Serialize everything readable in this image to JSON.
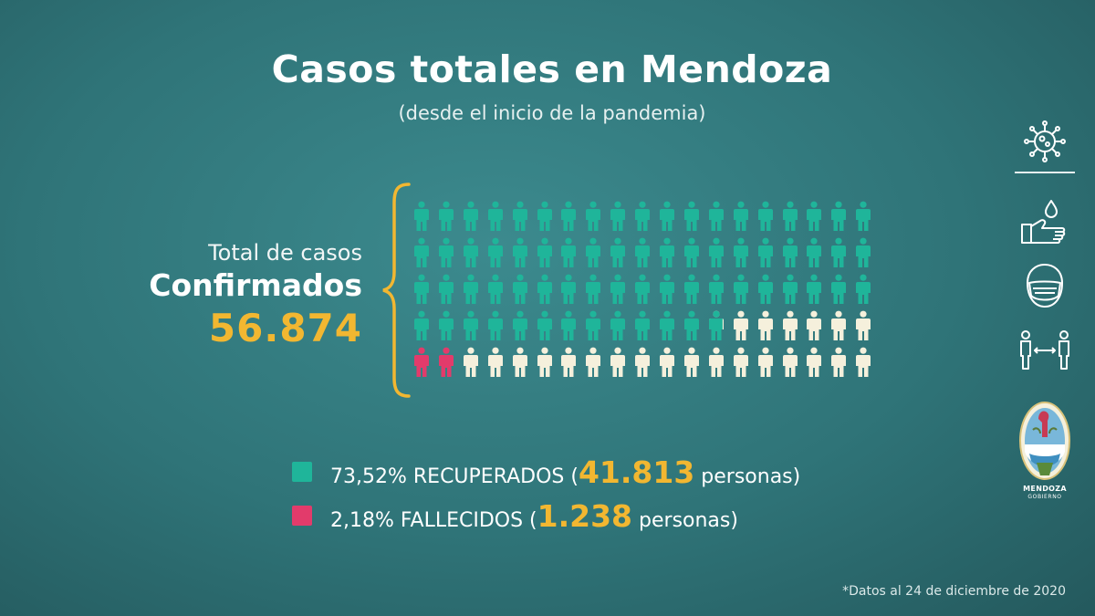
{
  "title": "Casos totales en Mendoza",
  "subtitle": "(desde el inicio de la pandemia)",
  "summary": {
    "label": "Total de casos",
    "strong": "Confirmados",
    "total": "56.874"
  },
  "colors": {
    "recovered": "#1fb59a",
    "deceased": "#e23b6b",
    "other": "#f5f0dc",
    "accent": "#f2b731"
  },
  "chart_data": {
    "type": "pictogram",
    "rows": 5,
    "cols": 19,
    "categories": [
      "RECUPERADOS",
      "FALLECIDOS"
    ],
    "series": [
      {
        "name": "RECUPERADOS",
        "percent": 73.52,
        "count": 41813
      },
      {
        "name": "FALLECIDOS",
        "percent": 2.18,
        "count": 1238
      }
    ],
    "total": 56874
  },
  "legend": [
    {
      "pct": "73,52% RECUPERADOS (",
      "num": "41.813",
      "tail": " personas)",
      "color": "#1fb59a"
    },
    {
      "pct": "2,18% FALLECIDOS (",
      "num": "1.238",
      "tail": " personas)",
      "color": "#e23b6b"
    }
  ],
  "footnote": "*Datos al 24 de diciembre de 2020",
  "side_icons": [
    "virus-icon",
    "handwash-icon",
    "face-mask-icon",
    "distance-icon"
  ],
  "seal": {
    "line1": "MENDOZA",
    "line2": "GOBIERNO"
  }
}
